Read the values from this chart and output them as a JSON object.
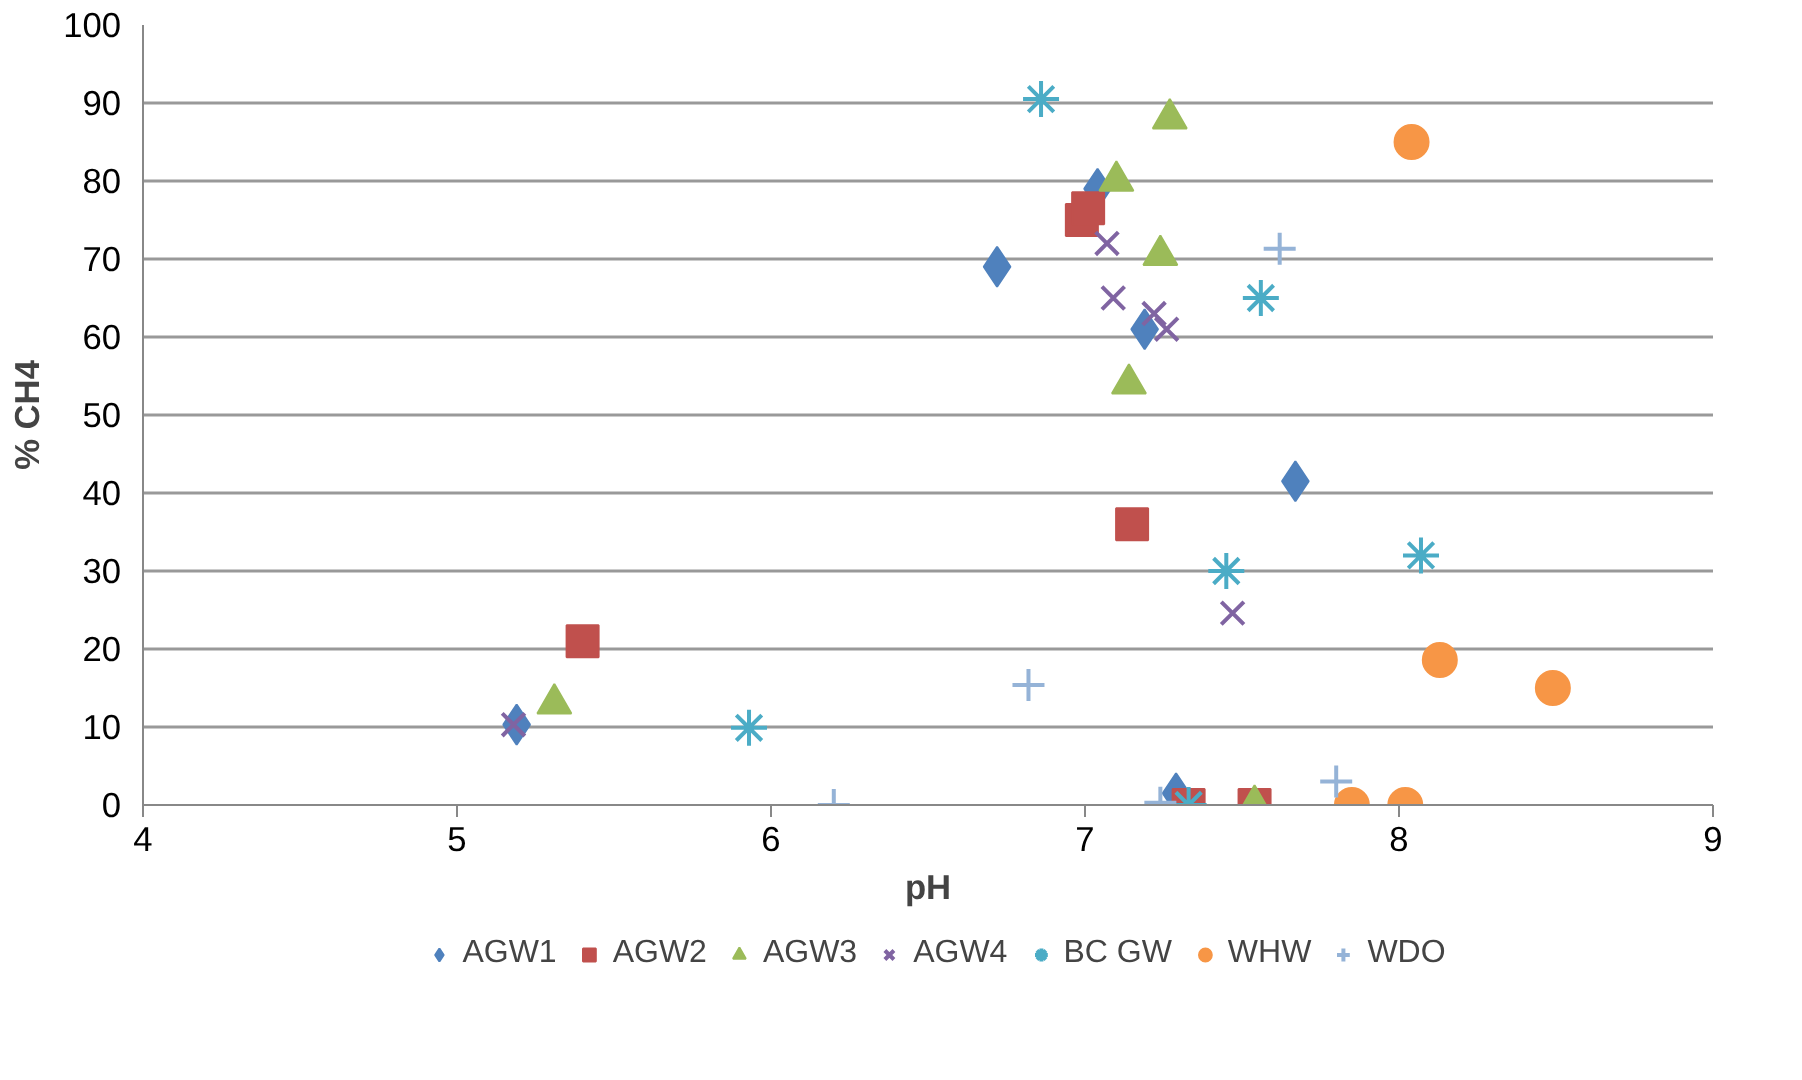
{
  "chart_data": {
    "type": "scatter",
    "xlabel": "pH",
    "ylabel": "% CH4",
    "xlim": [
      4,
      9
    ],
    "ylim": [
      0,
      100
    ],
    "xticks": [
      4,
      5,
      6,
      7,
      8,
      9
    ],
    "yticks": [
      0,
      10,
      20,
      30,
      40,
      50,
      60,
      70,
      80,
      90,
      100
    ],
    "grid": "y",
    "legend": "bottom",
    "series": [
      {
        "name": "AGW1",
        "color": "#4f81bd",
        "x": [
          5.19,
          6.72,
          7.04,
          7.19,
          7.67,
          7.29
        ],
        "values": [
          10.3,
          69,
          79,
          61,
          41.5,
          1.5
        ]
      },
      {
        "name": "AGW2",
        "color": "#c0504d",
        "x": [
          5.4,
          6.99,
          7.01,
          7.15,
          7.33,
          7.54
        ],
        "values": [
          21,
          75,
          76.5,
          36,
          0,
          0
        ]
      },
      {
        "name": "AGW3",
        "color": "#9bbb59",
        "x": [
          5.31,
          7.27,
          7.1,
          7.24,
          7.14,
          7.54
        ],
        "values": [
          13,
          88,
          80,
          70.5,
          54,
          0
        ]
      },
      {
        "name": "AGW4",
        "color": "#8064a2",
        "x": [
          5.18,
          7.07,
          7.09,
          7.22,
          7.26,
          7.47
        ],
        "values": [
          10.3,
          72,
          65,
          63,
          61,
          24.6
        ]
      },
      {
        "name": "BC GW",
        "color": "#4bacc6",
        "x": [
          5.93,
          6.86,
          7.56,
          7.45,
          8.07,
          7.33
        ],
        "values": [
          9.9,
          90.5,
          65,
          30,
          32,
          0
        ]
      },
      {
        "name": "WHW",
        "color": "#f79646",
        "x": [
          8.04,
          8.13,
          8.49,
          7.85,
          8.02
        ],
        "values": [
          85,
          18.6,
          15,
          0,
          0
        ]
      },
      {
        "name": "WDO",
        "color": "#95b3d7",
        "x": [
          6.2,
          6.82,
          7.62,
          7.24,
          7.8
        ],
        "values": [
          0,
          15.4,
          71.3,
          0.3,
          3
        ]
      }
    ]
  }
}
